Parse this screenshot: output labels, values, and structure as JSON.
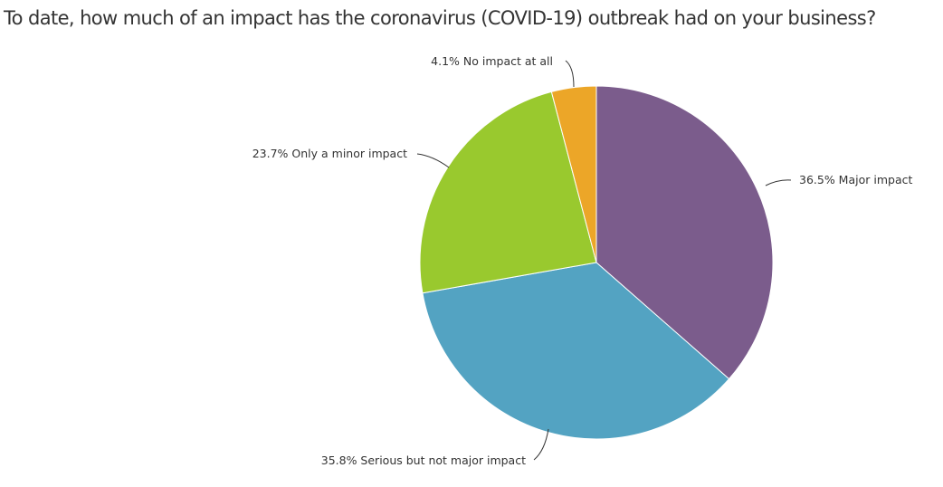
{
  "chart_data": {
    "type": "pie",
    "title": "To date, how much of an impact has the coronavirus (COVID-19) outbreak had on your business?",
    "slices": [
      {
        "label": "Major impact",
        "value": 36.5,
        "color": "#7b5c8c"
      },
      {
        "label": "Serious but not major impact",
        "value": 35.8,
        "color": "#53a3c2"
      },
      {
        "label": "Only a minor impact",
        "value": 23.7,
        "color": "#99c92e"
      },
      {
        "label": "No impact at all",
        "value": 4.1,
        "color": "#eca628"
      }
    ],
    "value_suffix": "%",
    "legend": "none"
  }
}
